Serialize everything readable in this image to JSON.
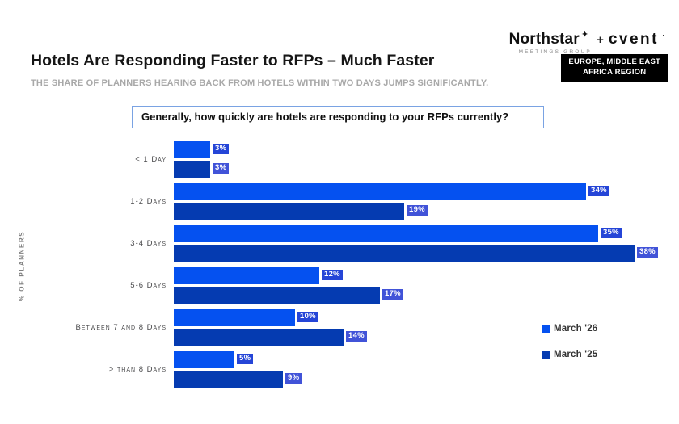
{
  "logo": {
    "northstar": "Northstar",
    "tagline": "MEETINGS GROUP",
    "plus": "+",
    "cvent": "cvent"
  },
  "region_badge": {
    "line1": "EUROPE, MIDDLE EAST",
    "line2": "AFRICA REGION",
    "bg": "#000000",
    "fg": "#ffffff"
  },
  "header": {
    "title": "Hotels Are Responding Faster to RFPs – Much Faster",
    "subtitle": "THE SHARE OF PLANNERS HEARING BACK FROM HOTELS WITHIN TWO DAYS JUMPS SIGNIFICANTLY."
  },
  "question": {
    "text": "Generally, how quickly are hotels are responding to your RFPs currently?"
  },
  "chart_data": {
    "type": "bar",
    "orientation": "horizontal",
    "title": "",
    "xlabel": "",
    "ylabel": "% OF PLANNERS",
    "xlim": [
      0,
      40
    ],
    "grid": false,
    "legend_position": "right",
    "value_suffix": "%",
    "categories": [
      "< 1 Day",
      "1-2 Days",
      "3-4 Days",
      "5-6 Days",
      "Between 7 and 8 Days",
      "> than 8 Days"
    ],
    "series": [
      {
        "name": "March '26",
        "color": "#0551f0",
        "label_bg": "#2545d7",
        "values": [
          3,
          34,
          35,
          12,
          10,
          5
        ]
      },
      {
        "name": "March '25",
        "color": "#053bb1",
        "label_bg": "#4153d8",
        "values": [
          3,
          19,
          38,
          17,
          14,
          9
        ]
      }
    ]
  }
}
